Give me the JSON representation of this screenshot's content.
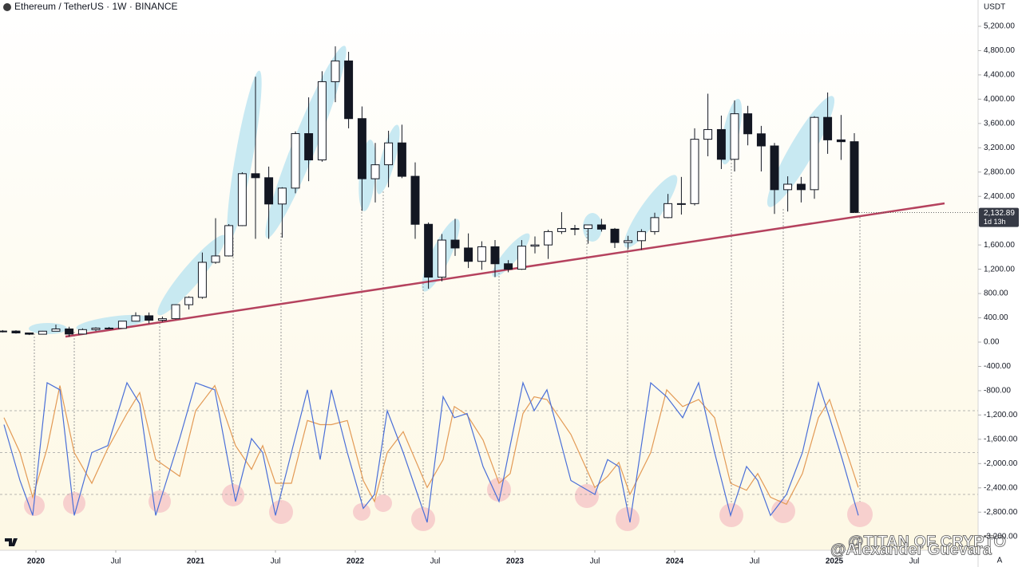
{
  "chart_data": {
    "type": "candlestick",
    "title": "Ethereum / TetherUS · 1W · BINANCE",
    "currency": "USDT",
    "scale_mode": "A",
    "xlim": [
      2019.775,
      2025.9
    ],
    "ylim": [
      -3427,
      5633
    ],
    "xticks": [
      2020,
      {
        "value": 2020.5,
        "label": "Jul"
      },
      2021,
      {
        "value": 2021.5,
        "label": "Jul"
      },
      2022,
      {
        "value": 2022.5,
        "label": "Jul"
      },
      2023,
      {
        "value": 2023.5,
        "label": "Jul"
      },
      2024,
      {
        "value": 2024.5,
        "label": "Jul"
      },
      2025,
      {
        "value": 2025.5,
        "label": "Jul"
      }
    ],
    "yticks": [
      {
        "value": 5200,
        "label": "5,200.00"
      },
      {
        "value": 4800,
        "label": "4,800.00"
      },
      {
        "value": 4400,
        "label": "4,400.00"
      },
      {
        "value": 4000,
        "label": "4,000.00"
      },
      {
        "value": 3600,
        "label": "3,600.00"
      },
      {
        "value": 3200,
        "label": "3,200.00"
      },
      {
        "value": 2800,
        "label": "2,800.00"
      },
      {
        "value": 2400,
        "label": "2,400.00"
      },
      {
        "value": 1600,
        "label": "1,600.00"
      },
      {
        "value": 1200,
        "label": "1,200.00"
      },
      {
        "value": 800,
        "label": "800.00"
      },
      {
        "value": 400,
        "label": "400.00"
      },
      {
        "value": 0,
        "label": "0.00"
      },
      {
        "value": -400,
        "label": "-400.00"
      },
      {
        "value": -800,
        "label": "-800.00"
      },
      {
        "value": -1200,
        "label": "-1,200.00"
      },
      {
        "value": -1600,
        "label": "-1,600.00"
      },
      {
        "value": -2000,
        "label": "-2,000.00"
      },
      {
        "value": -2400,
        "label": "-2,400.00"
      },
      {
        "value": -2800,
        "label": "-2,800.00"
      },
      {
        "value": -3200,
        "label": "-3,200.00"
      }
    ],
    "up_color": "#ffffff",
    "down_color": "#131722",
    "x": [
      2019.792,
      2019.875,
      2019.958,
      2020.042,
      2020.125,
      2020.208,
      2020.292,
      2020.375,
      2020.458,
      2020.542,
      2020.625,
      2020.708,
      2020.792,
      2020.875,
      2020.958,
      2021.042,
      2021.125,
      2021.208,
      2021.292,
      2021.375,
      2021.458,
      2021.542,
      2021.625,
      2021.708,
      2021.792,
      2021.875,
      2021.958,
      2022.042,
      2022.125,
      2022.208,
      2022.292,
      2022.375,
      2022.458,
      2022.542,
      2022.625,
      2022.708,
      2022.792,
      2022.875,
      2022.958,
      2023.042,
      2023.125,
      2023.208,
      2023.292,
      2023.375,
      2023.458,
      2023.542,
      2023.625,
      2023.708,
      2023.792,
      2023.875,
      2023.958,
      2024.042,
      2024.125,
      2024.208,
      2024.292,
      2024.375,
      2024.458,
      2024.542,
      2024.625,
      2024.708,
      2024.792,
      2024.875,
      2024.958,
      2025.042,
      2025.125
    ],
    "open": [
      180,
      182,
      151,
      130,
      180,
      217,
      133,
      206,
      231,
      226,
      345,
      434,
      360,
      386,
      616,
      737,
      1314,
      1419,
      1918,
      2773,
      2707,
      2274,
      2536,
      3433,
      3000,
      4288,
      4630,
      3680,
      2690,
      2920,
      3280,
      2730,
      1940,
      1070,
      1680,
      1550,
      1330,
      1570,
      1290,
      1200,
      1580,
      1600,
      1820,
      1870,
      1870,
      1930,
      1860,
      1640,
      1670,
      1820,
      2050,
      2280,
      2280,
      3340,
      3500,
      3010,
      3760,
      3430,
      3230,
      2510,
      2600,
      2510,
      3700,
      3330,
      3300
    ],
    "high": [
      198,
      195,
      155,
      185,
      288,
      253,
      227,
      245,
      250,
      345,
      490,
      488,
      420,
      622,
      755,
      1475,
      2040,
      1943,
      2797,
      4370,
      2890,
      2550,
      3470,
      4030,
      4460,
      4870,
      4780,
      3880,
      3280,
      3480,
      3580,
      2960,
      1970,
      1780,
      2030,
      1790,
      1660,
      1680,
      1350,
      1680,
      1740,
      1850,
      2140,
      1930,
      1930,
      2030,
      1880,
      1750,
      1860,
      2130,
      2440,
      2720,
      3520,
      4090,
      3730,
      3980,
      3890,
      3560,
      3280,
      2730,
      2720,
      3720,
      4110,
      3740,
      3440
    ],
    "low": [
      160,
      140,
      117,
      127,
      180,
      90,
      130,
      182,
      216,
      225,
      340,
      308,
      335,
      374,
      537,
      714,
      1290,
      1410,
      1910,
      1700,
      1700,
      1720,
      2450,
      2650,
      2970,
      3950,
      3520,
      2160,
      2300,
      2550,
      2700,
      1700,
      880,
      1000,
      1420,
      1220,
      1190,
      1070,
      1150,
      1190,
      1460,
      1370,
      1780,
      1760,
      1620,
      1820,
      1550,
      1530,
      1520,
      1770,
      2040,
      2100,
      2250,
      3060,
      2850,
      2810,
      3240,
      2810,
      2110,
      2150,
      2300,
      2360,
      3100,
      3000,
      2130
    ],
    "close": [
      182,
      151,
      130,
      180,
      217,
      133,
      206,
      231,
      226,
      345,
      434,
      360,
      386,
      616,
      737,
      1314,
      1419,
      1918,
      2773,
      2707,
      2274,
      2536,
      3433,
      3000,
      4288,
      4630,
      3680,
      2690,
      2920,
      3280,
      2730,
      1940,
      1070,
      1680,
      1550,
      1330,
      1570,
      1290,
      1200,
      1580,
      1600,
      1820,
      1870,
      1870,
      1930,
      1860,
      1640,
      1670,
      1820,
      2050,
      2280,
      2280,
      3340,
      3500,
      3010,
      3760,
      3430,
      3230,
      2510,
      2600,
      2510,
      3700,
      3330,
      3300,
      2132.89
    ],
    "last_price": 2132.89,
    "last_price_label": "2,132.89",
    "countdown": "1d 13h",
    "trendline": {
      "color": "#b5425e",
      "x": [
        2020.185,
        2025.69
      ],
      "y": [
        90,
        2285
      ]
    },
    "oscillator": {
      "ylim": [
        0,
        100
      ],
      "levels": [
        80,
        50,
        20
      ],
      "x": [
        2019.8,
        2019.9,
        2019.98,
        2020.07,
        2020.15,
        2020.24,
        2020.35,
        2020.45,
        2020.57,
        2020.65,
        2020.75,
        2020.9,
        2021.0,
        2021.12,
        2021.25,
        2021.35,
        2021.42,
        2021.5,
        2021.6,
        2021.7,
        2021.78,
        2021.85,
        2021.95,
        2022.05,
        2022.12,
        2022.2,
        2022.3,
        2022.45,
        2022.55,
        2022.62,
        2022.7,
        2022.8,
        2022.9,
        2022.97,
        2023.05,
        2023.12,
        2023.2,
        2023.35,
        2023.5,
        2023.58,
        2023.65,
        2023.72,
        2023.85,
        2023.95,
        2024.05,
        2024.15,
        2024.25,
        2024.35,
        2024.45,
        2024.52,
        2024.6,
        2024.7,
        2024.8,
        2024.9,
        2024.97,
        2025.05,
        2025.15
      ],
      "series": [
        {
          "color": "#4a6fd8",
          "values": [
            70,
            30,
            5,
            100,
            95,
            5,
            50,
            55,
            100,
            85,
            5,
            60,
            100,
            95,
            15,
            60,
            50,
            5,
            50,
            95,
            45,
            95,
            50,
            10,
            20,
            80,
            50,
            0,
            90,
            75,
            78,
            40,
            15,
            55,
            100,
            80,
            95,
            30,
            20,
            45,
            40,
            0,
            100,
            90,
            75,
            100,
            50,
            5,
            40,
            30,
            5,
            20,
            50,
            100,
            75,
            45,
            5
          ]
        },
        {
          "color": "#e39a55",
          "values": [
            75,
            50,
            18,
            53,
            98,
            50,
            28,
            53,
            78,
            93,
            45,
            33,
            80,
            98,
            55,
            38,
            55,
            28,
            28,
            73,
            70,
            70,
            73,
            30,
            15,
            50,
            65,
            25,
            45,
            83,
            77,
            59,
            28,
            35,
            78,
            90,
            88,
            63,
            25,
            33,
            43,
            20,
            50,
            95,
            83,
            88,
            75,
            28,
            23,
            35,
            18,
            13,
            35,
            75,
            88,
            60,
            25
          ]
        }
      ]
    },
    "annotations": [
      "@TITAN OF CRYPTO",
      "@Alexander Guevara"
    ]
  }
}
